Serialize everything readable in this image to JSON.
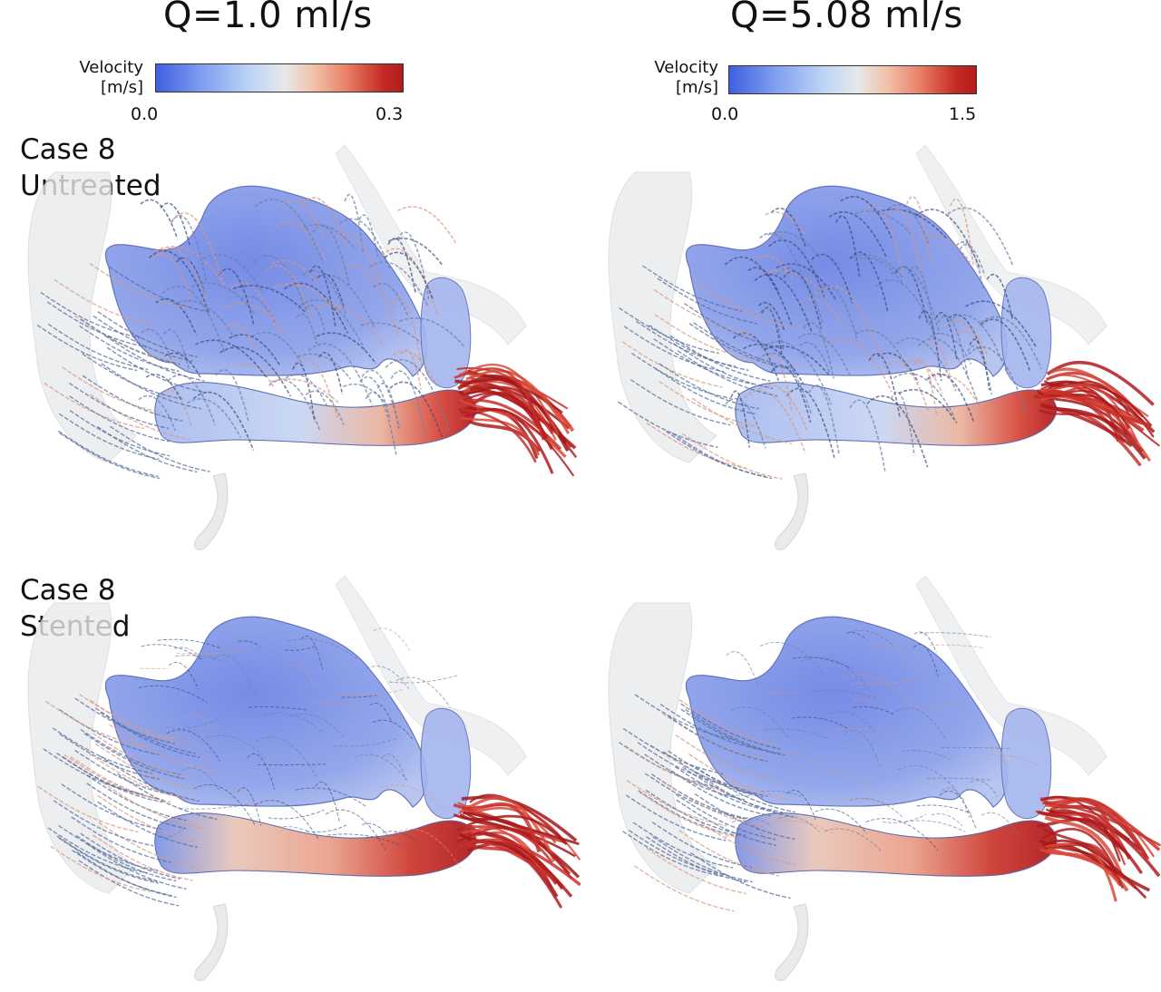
{
  "columns": [
    {
      "title": "Q=1.0 ml/s",
      "colorbar": {
        "label_line1": "Velocity",
        "label_line2": "[m/s]",
        "min": "0.0",
        "max": "0.3"
      }
    },
    {
      "title": "Q=5.08 ml/s",
      "colorbar": {
        "label_line1": "Velocity",
        "label_line2": "[m/s]",
        "min": "0.0",
        "max": "1.5"
      }
    }
  ],
  "rows": [
    {
      "line1": "Case 8",
      "line2": "Untreated"
    },
    {
      "line1": "Case 8",
      "line2": "Stented"
    }
  ],
  "colors": {
    "low": "#3e5fe0",
    "mid": "#e6e8ea",
    "high": "#b01c1e",
    "aneurysm_fill": "#7f93e6",
    "vessel_ghost": "#e9eaec"
  }
}
